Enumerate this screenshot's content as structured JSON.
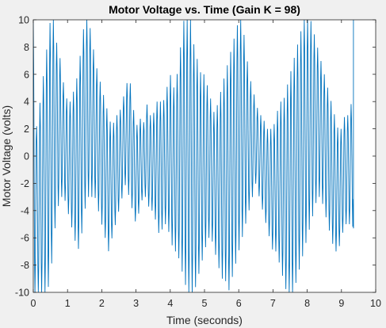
{
  "chart_data": {
    "type": "line",
    "title": "Motor Voltage vs. Time (Gain K = 98)",
    "xlabel": "Time (seconds)",
    "ylabel": "Motor Voltage (volts)",
    "xlim": [
      0,
      10
    ],
    "ylim": [
      -10,
      10
    ],
    "x_ticks": [
      0,
      1,
      2,
      3,
      4,
      5,
      6,
      7,
      8,
      9,
      10
    ],
    "y_ticks": [
      -10,
      -8,
      -6,
      -4,
      -2,
      0,
      2,
      4,
      6,
      8,
      10
    ],
    "grid": false,
    "legend": "none",
    "series": [
      {
        "color": "#0072bd",
        "saturation_limit": 10,
        "oscillation_period_s": 0.0977,
        "t_end": 9.35,
        "final_value": -5.3,
        "x": [
          0,
          0.1,
          0.2,
          0.3,
          0.4,
          0.5,
          0.6,
          0.7,
          0.8,
          0.9,
          1.0,
          1.1,
          1.2,
          1.3,
          1.4,
          1.5,
          1.6,
          1.7,
          1.8,
          1.9,
          2.0,
          2.1,
          2.2,
          2.3,
          2.4,
          2.5,
          2.6,
          2.7,
          2.8,
          2.9,
          3.0,
          3.1,
          3.2,
          3.3,
          3.4,
          3.5,
          3.6,
          3.7,
          3.8,
          3.9,
          4.0,
          4.1,
          4.2,
          4.3,
          4.4,
          4.5,
          4.6,
          4.7,
          4.8,
          4.9,
          5.0,
          5.1,
          5.2,
          5.3,
          5.4,
          5.5,
          5.6,
          5.7,
          5.8,
          5.9,
          6.0,
          6.1,
          6.2,
          6.3,
          6.4,
          6.5,
          6.6,
          6.7,
          6.8,
          6.9,
          7.0,
          7.1,
          7.2,
          7.3,
          7.4,
          7.5,
          7.6,
          7.7,
          7.8,
          7.9,
          8.0,
          8.1,
          8.2,
          8.3,
          8.4,
          8.5,
          8.6,
          8.7,
          8.8,
          8.9,
          9.0,
          9.1,
          9.2,
          9.3,
          9.35
        ],
        "y_upper": [
          10,
          2,
          4,
          6,
          8,
          10,
          10,
          8,
          7,
          5,
          4,
          4,
          5,
          6,
          8,
          10,
          10,
          9,
          7,
          6,
          5,
          4,
          3,
          2,
          3,
          3,
          4,
          5,
          6,
          4,
          2,
          3,
          2,
          4,
          3,
          3,
          4,
          4,
          4,
          5,
          6,
          5,
          6,
          8,
          10,
          10,
          10,
          8,
          7,
          6,
          6,
          5,
          4,
          3,
          4,
          5,
          6,
          7,
          8,
          9,
          10,
          10,
          8,
          6,
          5,
          4,
          3,
          3,
          2,
          2,
          2,
          3,
          4,
          4,
          5,
          6,
          7,
          8,
          9,
          10,
          10,
          10,
          9,
          8,
          7,
          6,
          5,
          4,
          3,
          2,
          2,
          3,
          3,
          4,
          10
        ],
        "y_lower": [
          -10,
          -10,
          -10,
          -10,
          -10,
          -9,
          -6,
          -4,
          -3,
          -3,
          -4,
          -5,
          -6,
          -7,
          -6,
          -4,
          -3,
          -3,
          -3,
          -4,
          -5,
          -6,
          -7,
          -6,
          -5,
          -4,
          -3,
          -2,
          -3,
          -4,
          -5,
          -4,
          -3,
          -3,
          -4,
          -4,
          -5,
          -6,
          -5,
          -5,
          -6,
          -7,
          -7,
          -8,
          -9,
          -10,
          -10,
          -10,
          -9,
          -8,
          -7,
          -6,
          -6,
          -7,
          -8,
          -9,
          -9,
          -10,
          -9,
          -8,
          -7,
          -6,
          -5,
          -4,
          -3,
          -2,
          -3,
          -4,
          -5,
          -6,
          -7,
          -7,
          -8,
          -9,
          -10,
          -10,
          -10,
          -9,
          -8,
          -7,
          -6,
          -5,
          -4,
          -3,
          -3,
          -4,
          -5,
          -6,
          -7,
          -7,
          -6,
          -5,
          -5,
          -5,
          -5.3
        ]
      }
    ]
  }
}
